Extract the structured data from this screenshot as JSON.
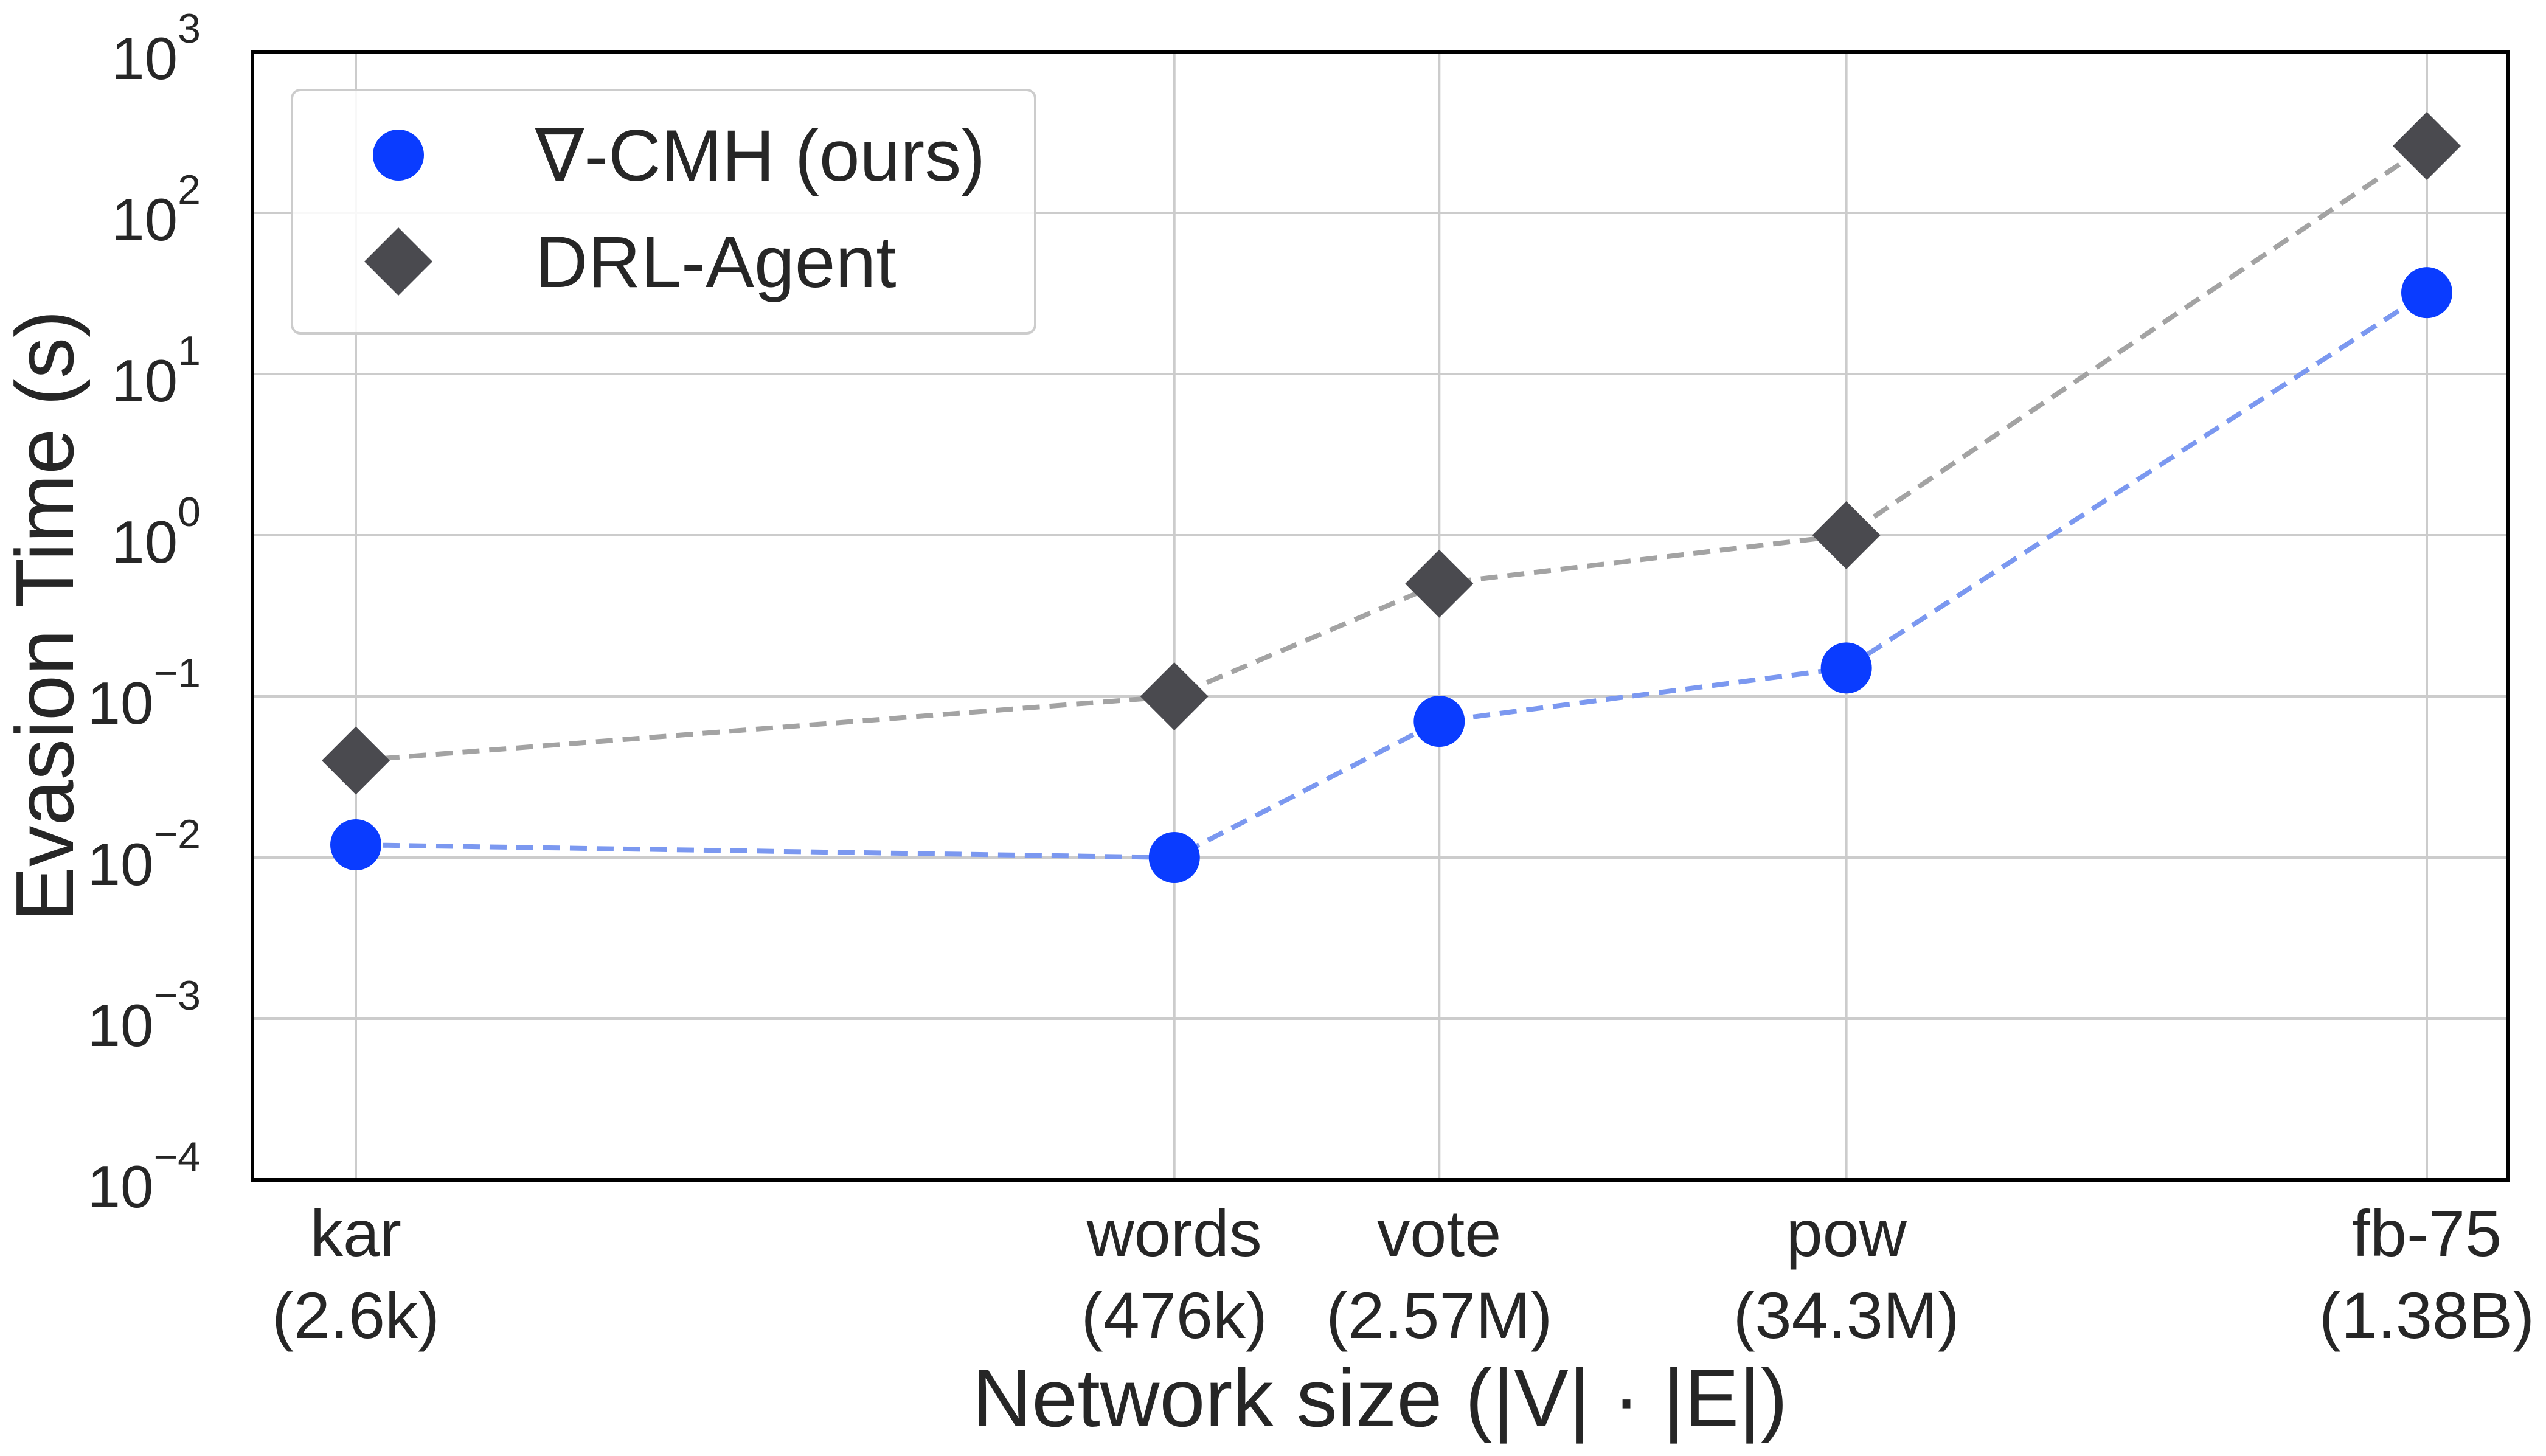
{
  "chart_data": {
    "type": "line",
    "title": "",
    "xlabel": "Network size (|V| · |E|)",
    "ylabel": "Evasion Time (s)",
    "yscale": "log",
    "ylim": [
      0.0001,
      1000
    ],
    "yticks": [
      {
        "value": 0.0001,
        "base": "10",
        "exp": "−4"
      },
      {
        "value": 0.001,
        "base": "10",
        "exp": "−3"
      },
      {
        "value": 0.01,
        "base": "10",
        "exp": "−2"
      },
      {
        "value": 0.1,
        "base": "10",
        "exp": "−1"
      },
      {
        "value": 1,
        "base": "10",
        "exp": "0"
      },
      {
        "value": 10,
        "base": "10",
        "exp": "1"
      },
      {
        "value": 100,
        "base": "10",
        "exp": "2"
      },
      {
        "value": 1000,
        "base": "10",
        "exp": "3"
      }
    ],
    "xscale": "log",
    "categories": [
      {
        "name": "kar",
        "size_label": "(2.6k)",
        "x": 2600
      },
      {
        "name": "words",
        "size_label": "(476k)",
        "x": 476000
      },
      {
        "name": "vote",
        "size_label": "(2.57M)",
        "x": 2570000
      },
      {
        "name": "pow",
        "size_label": "(34.3M)",
        "x": 34300000
      },
      {
        "name": "fb-75",
        "size_label": "(1.38B)",
        "x": 1380000000
      }
    ],
    "grid": true,
    "legend": "top-left",
    "series": [
      {
        "name": "∇-CMH (ours)",
        "marker": "circle",
        "color": "#0a3cff",
        "line_color": "#7b98f0",
        "values": [
          0.012,
          0.01,
          0.07,
          0.15,
          32
        ]
      },
      {
        "name": "DRL-Agent",
        "marker": "diamond",
        "color": "#4a4a4f",
        "line_color": "#a3a3a3",
        "values": [
          0.04,
          0.1,
          0.5,
          1.0,
          260
        ]
      }
    ]
  }
}
